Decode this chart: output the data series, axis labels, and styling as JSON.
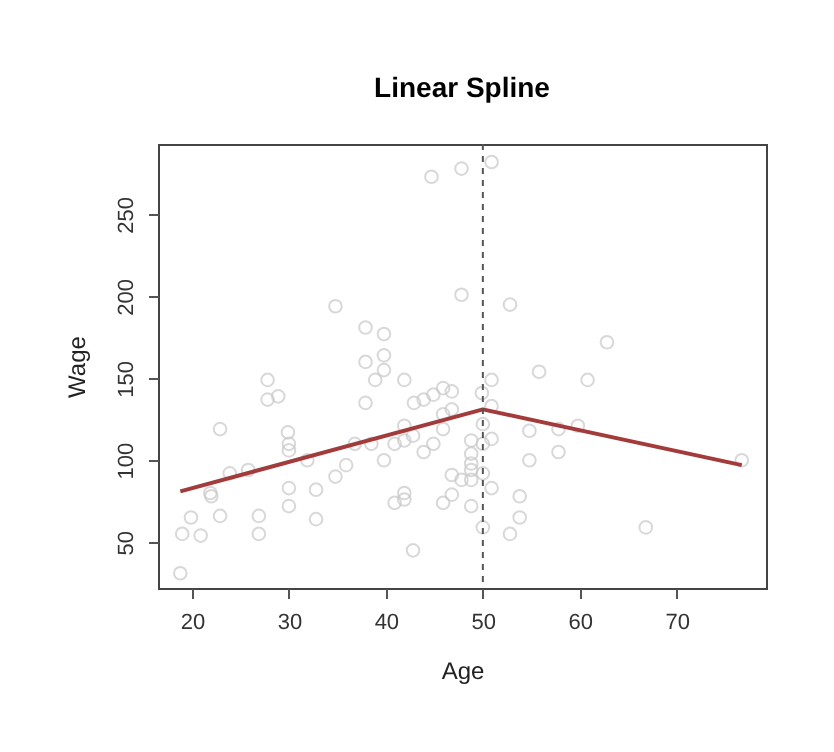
{
  "chart_data": {
    "type": "scatter",
    "title": "Linear Spline",
    "xlabel": "Age",
    "ylabel": "Wage",
    "xlim": [
      16.5,
      79.2
    ],
    "ylim": [
      22,
      293
    ],
    "xticks": [
      20,
      30,
      40,
      50,
      60,
      70
    ],
    "yticks": [
      50,
      100,
      150,
      200,
      250
    ],
    "grid": false,
    "series": [
      {
        "color": "#c8c8c8",
        "marker": "circle",
        "x": [
          18.8,
          19,
          19.9,
          20.9,
          21.9,
          22,
          22.9,
          22.9,
          23.9,
          25.8,
          26.9,
          26.9,
          27.8,
          27.8,
          28.9,
          29.9,
          30,
          30,
          30,
          30,
          31.9,
          32.8,
          32.8,
          34.8,
          35.9,
          34.8,
          36.8,
          37.9,
          37.9,
          38.9,
          37.9,
          39.8,
          39.8,
          39.8,
          38.5,
          39.8,
          40.9,
          40.9,
          44.7,
          47.8,
          50.9,
          41.9,
          42.9,
          43.9,
          44.9,
          45.9,
          46.8,
          46.8,
          45.9,
          41.9,
          42.8,
          41.9,
          43.9,
          44.9,
          45.9,
          41.9,
          41.9,
          42.8,
          45.9,
          46.8,
          46.8,
          47.8,
          48.8,
          48.8,
          48.8,
          48.8,
          48.8,
          48.8,
          47.8,
          49.9,
          50,
          50,
          50,
          50,
          50.9,
          50.9,
          50.9,
          50.9,
          52.8,
          52.8,
          53.8,
          53.8,
          54.8,
          54.8,
          55.8,
          57.8,
          57.8,
          59.8,
          60.8,
          62.8,
          66.8,
          76.7
        ],
        "values": [
          31,
          55,
          65,
          54,
          80,
          78,
          66,
          119,
          92,
          94,
          66,
          55,
          137,
          149,
          139,
          117,
          110,
          106,
          83,
          72,
          100,
          82,
          64,
          90,
          97,
          194,
          110,
          181,
          160,
          149,
          135,
          177,
          164,
          155,
          110,
          100,
          74,
          110,
          273,
          278,
          282,
          149,
          135,
          137,
          140,
          144,
          142,
          131,
          128,
          121,
          115,
          112,
          105,
          110,
          119,
          76,
          80,
          45,
          74,
          79,
          91,
          88,
          88,
          72,
          112,
          104,
          98,
          94,
          201,
          141,
          122,
          110,
          92,
          59,
          149,
          133,
          113,
          83,
          195,
          55,
          78,
          65,
          118,
          100,
          154,
          119,
          105,
          121,
          149,
          172,
          59,
          100
        ]
      },
      {
        "type": "line",
        "marker": "none",
        "color": "#a33b3b",
        "x": [
          18.8,
          50,
          76.7
        ],
        "values": [
          81,
          131,
          97
        ]
      }
    ],
    "ref_lines": [
      {
        "axis": "x",
        "value": 50,
        "line_style": "dashed",
        "color": "#555555"
      }
    ]
  }
}
